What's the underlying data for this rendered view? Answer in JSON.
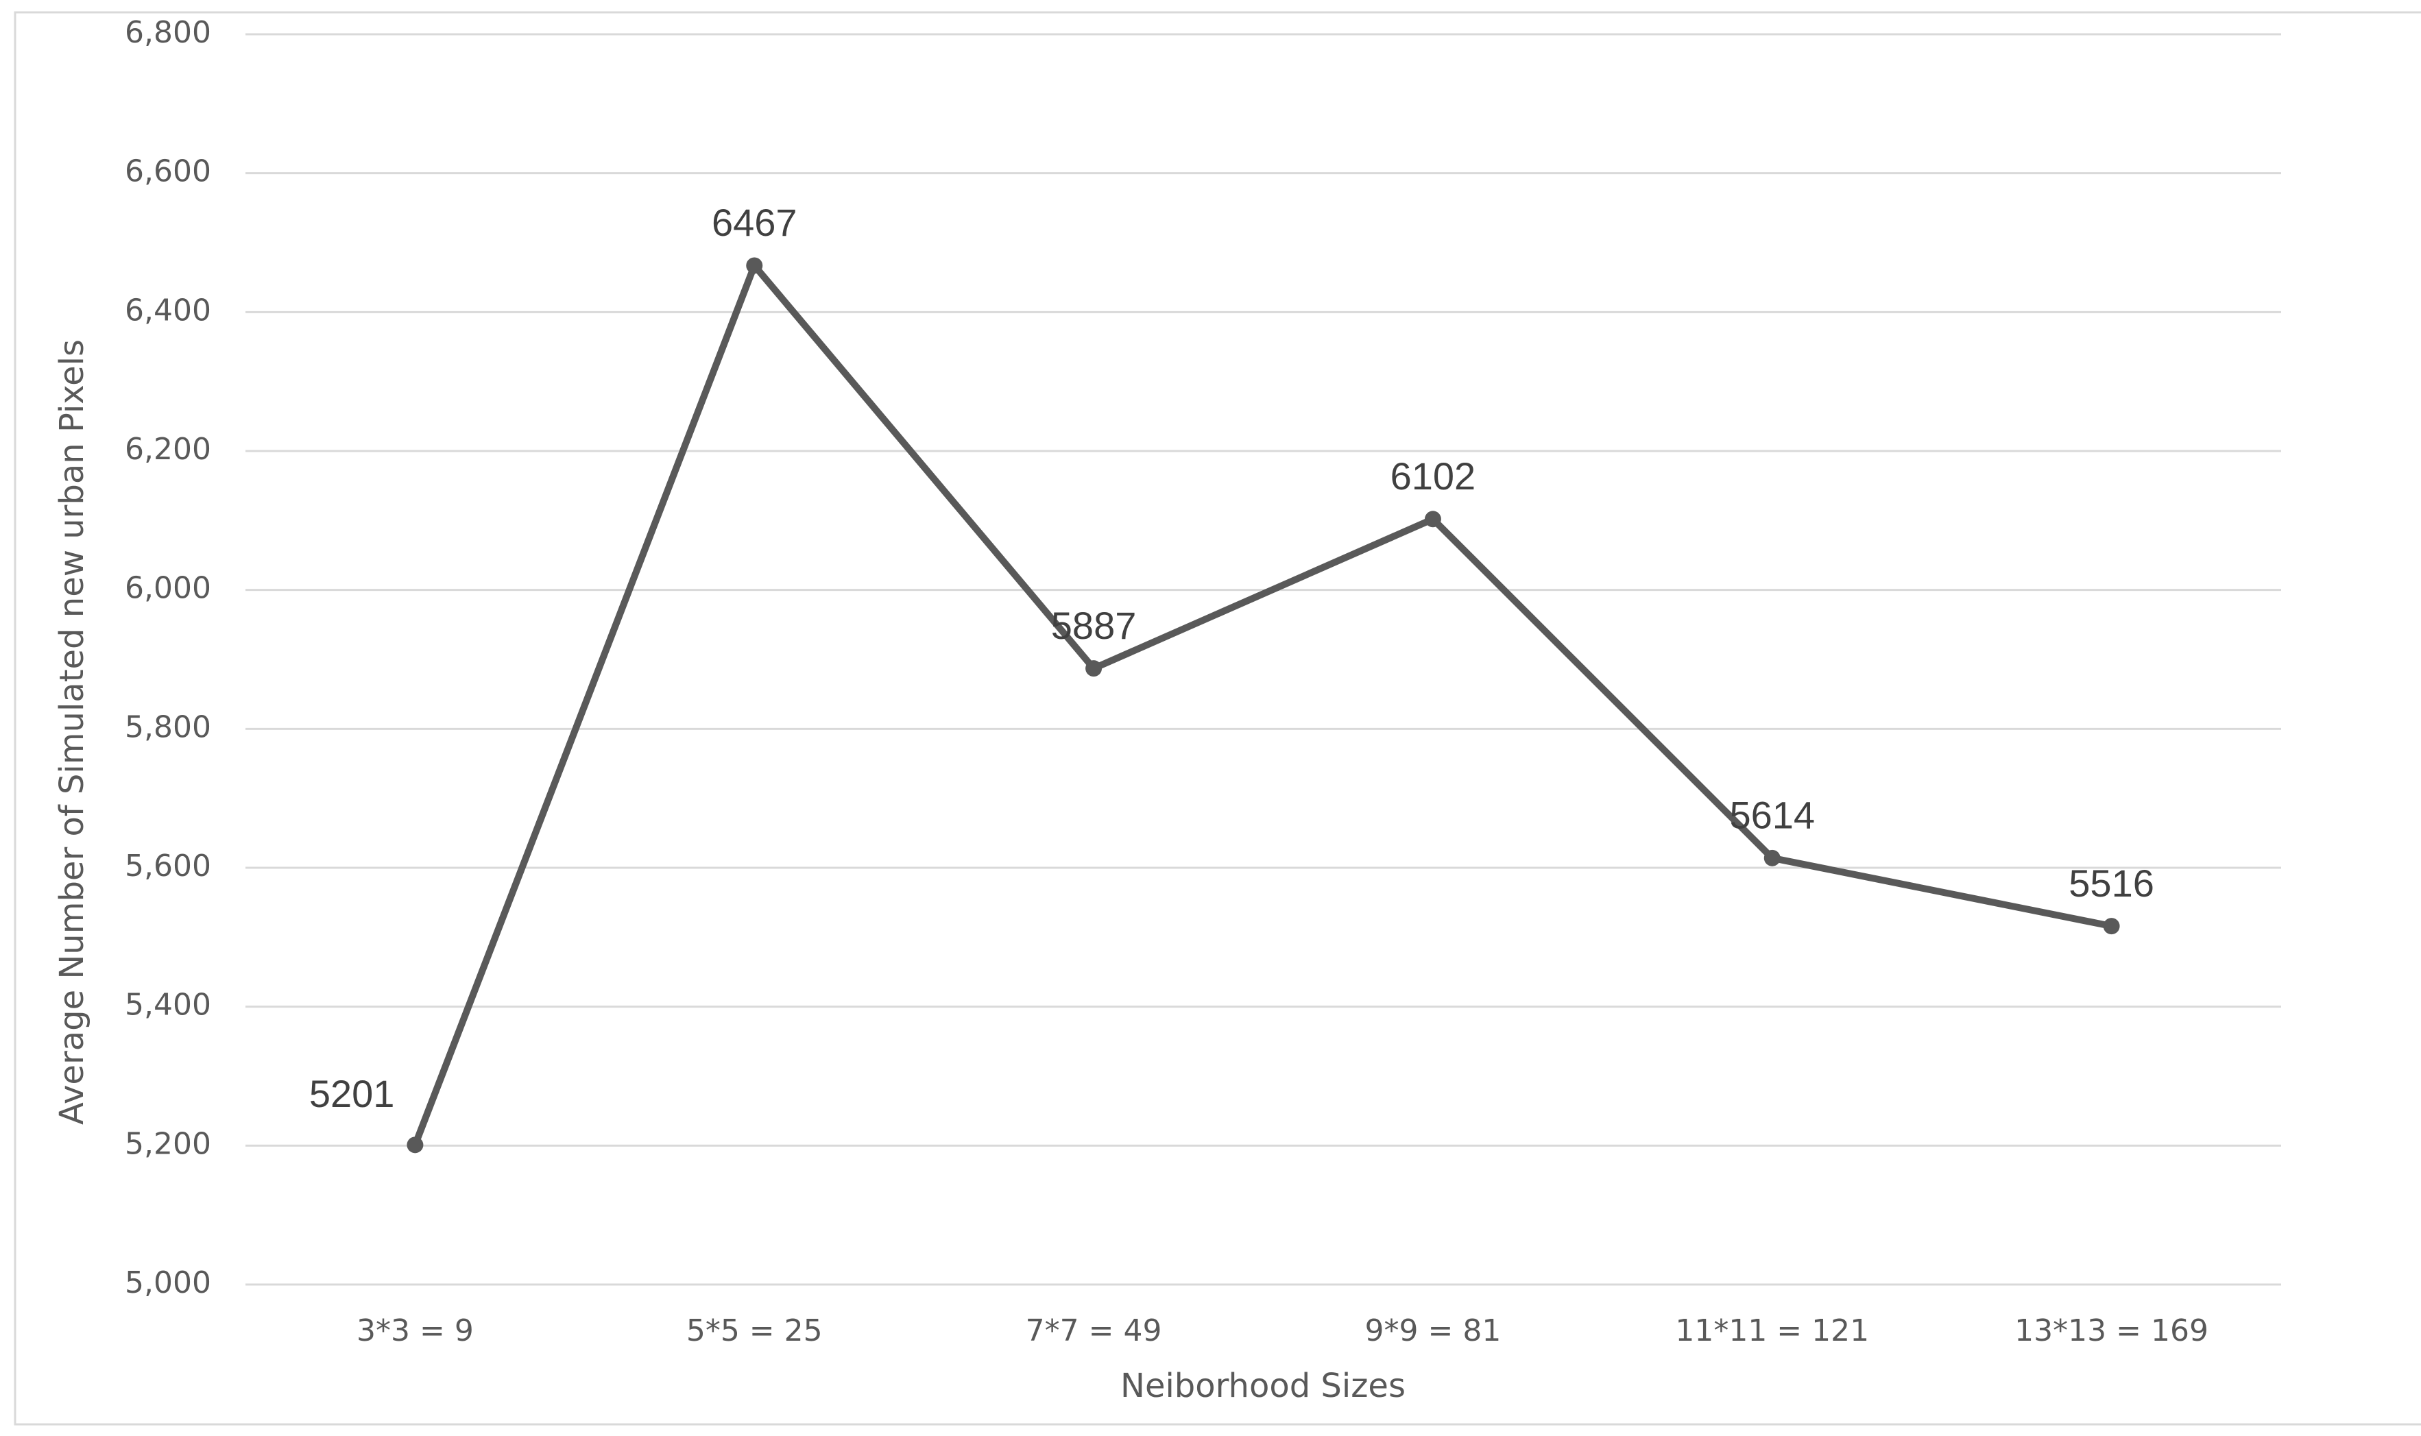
{
  "chart_data": {
    "type": "line",
    "x_label": "Neiborhood Sizes",
    "y_label": "Average Number of Simulated new urban Pixels",
    "categories": [
      "3*3 = 9",
      "5*5 = 25",
      "7*7 = 49",
      "9*9 = 81",
      "11*11 = 121",
      "13*13 = 169"
    ],
    "values": [
      5201,
      6467,
      5887,
      6102,
      5614,
      5516
    ],
    "color": "#595959",
    "ylim": [
      5000,
      6800
    ],
    "yticks": [
      {
        "value": 5000,
        "label": "5,000"
      },
      {
        "value": 5200,
        "label": "5,200"
      },
      {
        "value": 5400,
        "label": "5,400"
      },
      {
        "value": 5600,
        "label": "5,600"
      },
      {
        "value": 5800,
        "label": "5,800"
      },
      {
        "value": 6000,
        "label": "6,000"
      },
      {
        "value": 6200,
        "label": "6,200"
      },
      {
        "value": 6400,
        "label": "6,400"
      },
      {
        "value": 6600,
        "label": "6,600"
      },
      {
        "value": 6800,
        "label": "6,800"
      }
    ],
    "grid": true
  }
}
